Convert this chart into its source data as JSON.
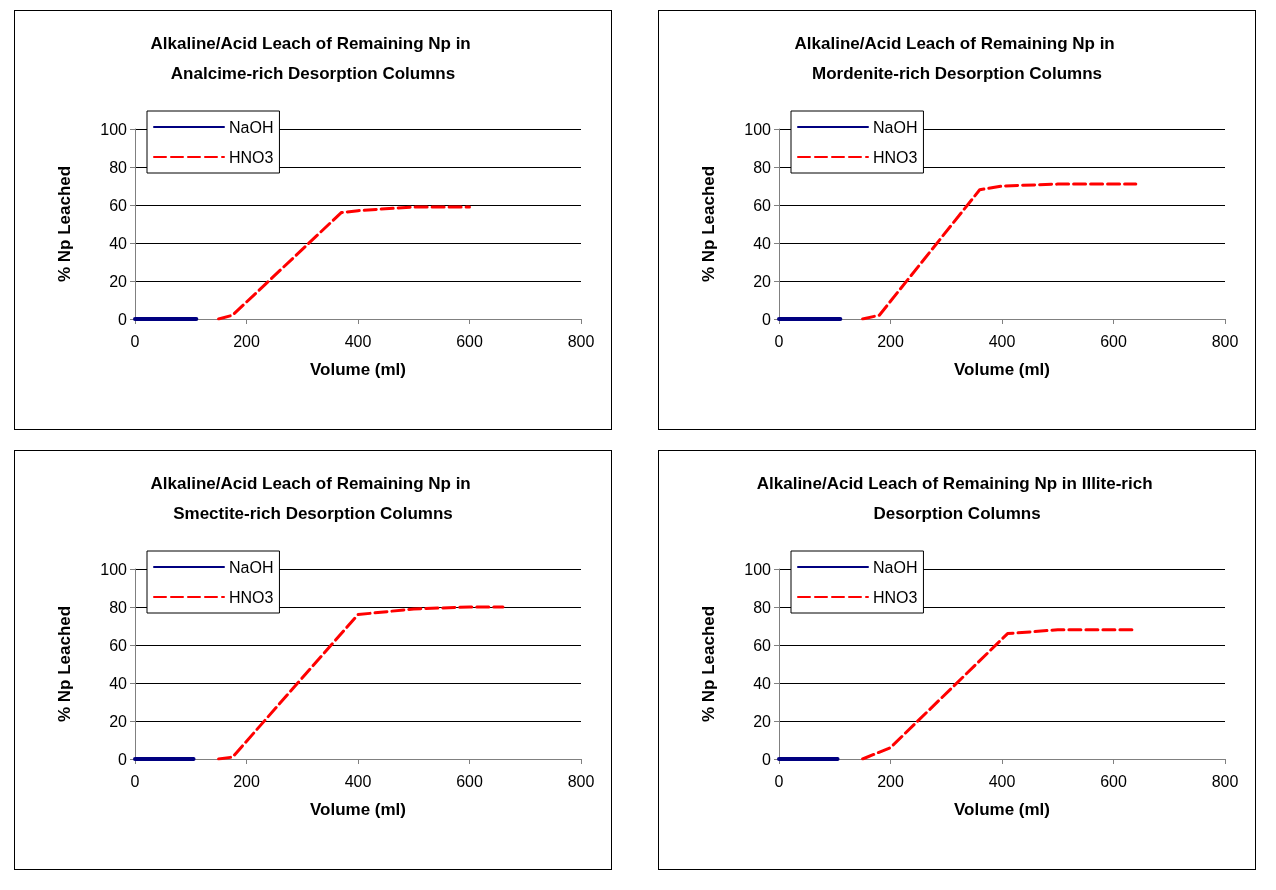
{
  "chart_data": [
    {
      "type": "line",
      "title": "Alkaline/Acid Leach of Remaining Np in Analcime-rich Desorption Columns",
      "xlabel": "Volume (ml)",
      "ylabel": "% Np Leached",
      "xlim": [
        0,
        800
      ],
      "xticks": [
        0,
        200,
        400,
        600,
        800
      ],
      "ylim": [
        0,
        100
      ],
      "yticks": [
        0,
        20,
        40,
        60,
        80,
        100
      ],
      "grid": "y",
      "legend": "top left",
      "marker": "none",
      "series": [
        {
          "name": "NaOH",
          "color": "#000080",
          "line_style": "solid",
          "x": [
            0,
            110
          ],
          "values": [
            0,
            0
          ]
        },
        {
          "name": "HNO3",
          "color": "#ff0000",
          "line_style": "dashed",
          "x": [
            150,
            175,
            370,
            400,
            500,
            600
          ],
          "values": [
            0,
            2,
            56,
            57,
            59,
            59
          ]
        }
      ]
    },
    {
      "type": "line",
      "title": "Alkaline/Acid Leach of Remaining Np in Mordenite-rich Desorption Columns",
      "xlabel": "Volume (ml)",
      "ylabel": "% Np Leached",
      "xlim": [
        0,
        800
      ],
      "xticks": [
        0,
        200,
        400,
        600,
        800
      ],
      "ylim": [
        0,
        100
      ],
      "yticks": [
        0,
        20,
        40,
        60,
        80,
        100
      ],
      "grid": "y",
      "legend": "top left",
      "marker": "none",
      "series": [
        {
          "name": "NaOH",
          "color": "#000080",
          "line_style": "solid",
          "x": [
            0,
            110
          ],
          "values": [
            0,
            0
          ]
        },
        {
          "name": "HNO3",
          "color": "#ff0000",
          "line_style": "dashed",
          "x": [
            150,
            180,
            360,
            400,
            500,
            640
          ],
          "values": [
            0,
            2,
            68,
            70,
            71,
            71
          ]
        }
      ]
    },
    {
      "type": "line",
      "title": "Alkaline/Acid Leach of Remaining Np in Smectite-rich Desorption Columns",
      "xlabel": "Volume (ml)",
      "ylabel": "% Np Leached",
      "xlim": [
        0,
        800
      ],
      "xticks": [
        0,
        200,
        400,
        600,
        800
      ],
      "ylim": [
        0,
        100
      ],
      "yticks": [
        0,
        20,
        40,
        60,
        80,
        100
      ],
      "grid": "y",
      "legend": "top left",
      "marker": "none",
      "series": [
        {
          "name": "NaOH",
          "color": "#000080",
          "line_style": "solid",
          "x": [
            0,
            105
          ],
          "values": [
            0,
            0
          ]
        },
        {
          "name": "HNO3",
          "color": "#ff0000",
          "line_style": "dashed",
          "x": [
            150,
            175,
            400,
            500,
            600,
            660
          ],
          "values": [
            0,
            1,
            76,
            79,
            80,
            80
          ]
        }
      ]
    },
    {
      "type": "line",
      "title": "Alkaline/Acid Leach of Remaining Np in Illite-rich Desorption Columns",
      "xlabel": "Volume (ml)",
      "ylabel": "% Np Leached",
      "xlim": [
        0,
        800
      ],
      "xticks": [
        0,
        200,
        400,
        600,
        800
      ],
      "ylim": [
        0,
        100
      ],
      "yticks": [
        0,
        20,
        40,
        60,
        80,
        100
      ],
      "grid": "y",
      "legend": "top left",
      "marker": "none",
      "series": [
        {
          "name": "NaOH",
          "color": "#000080",
          "line_style": "solid",
          "x": [
            0,
            105
          ],
          "values": [
            0,
            0
          ]
        },
        {
          "name": "HNO3",
          "color": "#ff0000",
          "line_style": "dashed",
          "x": [
            150,
            200,
            410,
            500,
            640
          ],
          "values": [
            0,
            6,
            66,
            68,
            68
          ]
        }
      ]
    }
  ]
}
